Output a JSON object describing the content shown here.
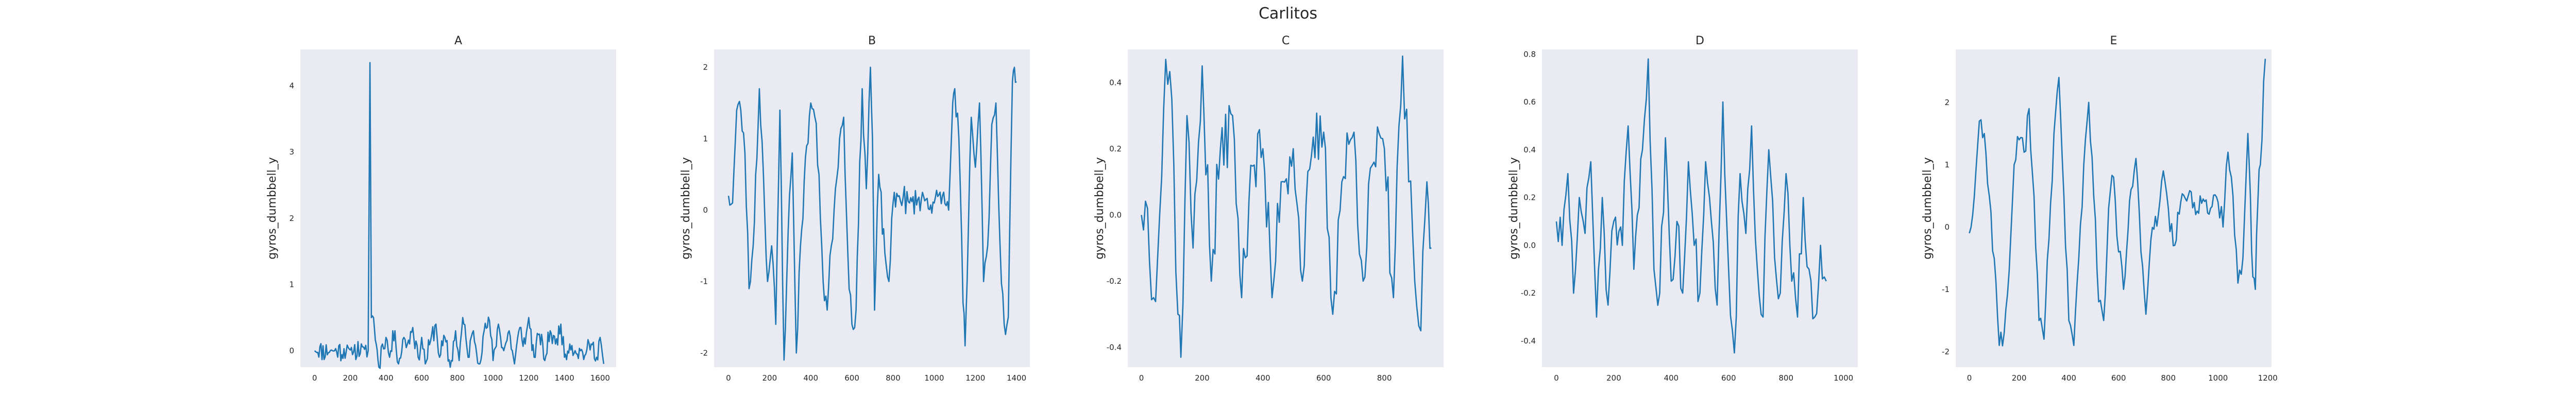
{
  "figure": {
    "title": "Carlitos"
  },
  "chart_data": [
    {
      "type": "line",
      "title": "A",
      "xlabel": "",
      "ylabel": "gyros_dumbbell_y",
      "xlim": [
        -80,
        1690
      ],
      "ylim": [
        -0.25,
        4.55
      ],
      "xticks": [
        0,
        200,
        400,
        600,
        800,
        1000,
        1200,
        1400,
        1600
      ],
      "yticks": [
        0,
        1,
        2,
        3,
        4
      ],
      "grid": false,
      "color": "#1f77b4",
      "keypoints": [
        [
          0,
          0
        ],
        [
          100,
          0
        ],
        [
          200,
          0.01
        ],
        [
          280,
          0.02
        ],
        [
          300,
          0
        ],
        [
          310,
          4.35
        ],
        [
          318,
          0.5
        ],
        [
          330,
          0.5
        ],
        [
          345,
          0.1
        ],
        [
          360,
          -0.25
        ],
        [
          380,
          0.1
        ],
        [
          400,
          0.2
        ],
        [
          420,
          -0.1
        ],
        [
          450,
          0.3
        ],
        [
          470,
          -0.2
        ],
        [
          500,
          0.2
        ],
        [
          520,
          0.1
        ],
        [
          550,
          0.35
        ],
        [
          580,
          -0.1
        ],
        [
          600,
          0.2
        ],
        [
          620,
          -0.2
        ],
        [
          650,
          0.15
        ],
        [
          680,
          0.4
        ],
        [
          700,
          -0.1
        ],
        [
          730,
          0.2
        ],
        [
          760,
          -0.25
        ],
        [
          790,
          0.3
        ],
        [
          810,
          -0.15
        ],
        [
          830,
          0.5
        ],
        [
          860,
          -0.1
        ],
        [
          890,
          0.3
        ],
        [
          920,
          -0.2
        ],
        [
          950,
          0.3
        ],
        [
          980,
          0.45
        ],
        [
          1000,
          -0.15
        ],
        [
          1030,
          0.4
        ],
        [
          1060,
          0
        ],
        [
          1090,
          0.3
        ],
        [
          1120,
          -0.2
        ],
        [
          1150,
          0.35
        ],
        [
          1180,
          0.1
        ],
        [
          1200,
          0.5
        ],
        [
          1230,
          -0.1
        ],
        [
          1260,
          0.25
        ],
        [
          1290,
          -0.15
        ],
        [
          1320,
          0.3
        ],
        [
          1350,
          0.1
        ],
        [
          1380,
          0.4
        ],
        [
          1400,
          -0.1
        ],
        [
          1430,
          0.1
        ],
        [
          1460,
          0
        ],
        [
          1490,
          0
        ],
        [
          1520,
          -0.05
        ],
        [
          1550,
          0.1
        ],
        [
          1580,
          -0.1
        ],
        [
          1600,
          0.2
        ],
        [
          1620,
          -0.2
        ]
      ],
      "amp": 0.17,
      "seed": 11
    },
    {
      "type": "line",
      "title": "B",
      "xlabel": "",
      "ylabel": "gyros_dumbbell_y",
      "xlim": [
        -70,
        1465
      ],
      "ylim": [
        -2.2,
        2.25
      ],
      "xticks": [
        0,
        200,
        400,
        600,
        800,
        1000,
        1200,
        1400
      ],
      "yticks": [
        -2,
        -1,
        0,
        1,
        2
      ],
      "grid": false,
      "color": "#1f77b4",
      "keypoints": [
        [
          0,
          0.2
        ],
        [
          20,
          0.1
        ],
        [
          40,
          1.4
        ],
        [
          60,
          1.4
        ],
        [
          80,
          0.8
        ],
        [
          100,
          -1.1
        ],
        [
          120,
          -0.5
        ],
        [
          150,
          1.7
        ],
        [
          170,
          0.5
        ],
        [
          190,
          -1.0
        ],
        [
          210,
          -0.5
        ],
        [
          230,
          -1.6
        ],
        [
          250,
          1.4
        ],
        [
          270,
          -2.1
        ],
        [
          290,
          -0.3
        ],
        [
          310,
          0.8
        ],
        [
          330,
          -2.0
        ],
        [
          350,
          -0.5
        ],
        [
          380,
          0.9
        ],
        [
          400,
          1.5
        ],
        [
          420,
          1.3
        ],
        [
          440,
          0.5
        ],
        [
          460,
          -1.0
        ],
        [
          480,
          -1.4
        ],
        [
          500,
          -0.5
        ],
        [
          520,
          0.3
        ],
        [
          540,
          1.0
        ],
        [
          560,
          1.3
        ],
        [
          580,
          -0.6
        ],
        [
          600,
          -1.6
        ],
        [
          620,
          -1.4
        ],
        [
          650,
          1.7
        ],
        [
          670,
          0.3
        ],
        [
          690,
          2.0
        ],
        [
          700,
          1.0
        ],
        [
          710,
          -1.4
        ],
        [
          730,
          0.5
        ],
        [
          760,
          -0.6
        ],
        [
          780,
          -1.0
        ],
        [
          800,
          0.1
        ],
        [
          830,
          0.2
        ],
        [
          880,
          0.1
        ],
        [
          920,
          0.15
        ],
        [
          960,
          0.15
        ],
        [
          1000,
          0.1
        ],
        [
          1040,
          0.2
        ],
        [
          1070,
          0
        ],
        [
          1090,
          1.5
        ],
        [
          1100,
          1.7
        ],
        [
          1120,
          1.0
        ],
        [
          1140,
          -1.3
        ],
        [
          1150,
          -1.9
        ],
        [
          1160,
          -1.0
        ],
        [
          1180,
          1.3
        ],
        [
          1200,
          0.6
        ],
        [
          1220,
          1.5
        ],
        [
          1240,
          -1.0
        ],
        [
          1260,
          -0.5
        ],
        [
          1280,
          1.2
        ],
        [
          1300,
          1.5
        ],
        [
          1320,
          -0.5
        ],
        [
          1340,
          -1.6
        ],
        [
          1360,
          -1.5
        ],
        [
          1380,
          1.8
        ],
        [
          1390,
          2.0
        ],
        [
          1400,
          1.8
        ]
      ],
      "amp": 0.22,
      "seed": 23
    },
    {
      "type": "line",
      "title": "C",
      "xlabel": "",
      "ylabel": "gyros_dumbbell_y",
      "xlim": [
        -45,
        995
      ],
      "ylim": [
        -0.46,
        0.5
      ],
      "xticks": [
        0,
        200,
        400,
        600,
        800
      ],
      "yticks": [
        -0.4,
        -0.2,
        0.0,
        0.2,
        0.4
      ],
      "grid": false,
      "color": "#1f77b4",
      "keypoints": [
        [
          0,
          0
        ],
        [
          20,
          0.02
        ],
        [
          40,
          -0.25
        ],
        [
          60,
          0
        ],
        [
          80,
          0.47
        ],
        [
          100,
          0.35
        ],
        [
          120,
          -0.3
        ],
        [
          130,
          -0.43
        ],
        [
          150,
          0.3
        ],
        [
          170,
          -0.1
        ],
        [
          200,
          0.45
        ],
        [
          230,
          -0.2
        ],
        [
          260,
          0.2
        ],
        [
          300,
          0.3
        ],
        [
          330,
          -0.25
        ],
        [
          360,
          0.15
        ],
        [
          400,
          0.2
        ],
        [
          430,
          -0.25
        ],
        [
          460,
          0.1
        ],
        [
          500,
          0.2
        ],
        [
          530,
          -0.2
        ],
        [
          560,
          0.18
        ],
        [
          600,
          0.25
        ],
        [
          630,
          -0.3
        ],
        [
          660,
          0.1
        ],
        [
          700,
          0.25
        ],
        [
          730,
          -0.2
        ],
        [
          760,
          0.15
        ],
        [
          800,
          0.2
        ],
        [
          830,
          -0.25
        ],
        [
          860,
          0.48
        ],
        [
          880,
          0.1
        ],
        [
          900,
          -0.2
        ],
        [
          920,
          -0.35
        ],
        [
          940,
          0.1
        ],
        [
          955,
          -0.1
        ]
      ],
      "amp": 0.12,
      "seed": 37
    },
    {
      "type": "line",
      "title": "D",
      "xlabel": "",
      "ylabel": "gyros_dumbbell_y",
      "xlim": [
        -50,
        1050
      ],
      "ylim": [
        -0.51,
        0.82
      ],
      "xticks": [
        0,
        200,
        400,
        600,
        800,
        1000
      ],
      "yticks": [
        -0.4,
        -0.2,
        0.0,
        0.2,
        0.4,
        0.6,
        0.8
      ],
      "grid": false,
      "color": "#1f77b4",
      "keypoints": [
        [
          0,
          0.1
        ],
        [
          20,
          0
        ],
        [
          40,
          0.3
        ],
        [
          60,
          -0.2
        ],
        [
          80,
          0.2
        ],
        [
          100,
          0.05
        ],
        [
          120,
          0.35
        ],
        [
          140,
          -0.3
        ],
        [
          160,
          0.2
        ],
        [
          180,
          -0.25
        ],
        [
          200,
          0.1
        ],
        [
          230,
          0.0
        ],
        [
          250,
          0.5
        ],
        [
          270,
          -0.1
        ],
        [
          300,
          0.4
        ],
        [
          320,
          0.78
        ],
        [
          340,
          -0.1
        ],
        [
          360,
          -0.2
        ],
        [
          380,
          0.45
        ],
        [
          400,
          -0.15
        ],
        [
          420,
          0.1
        ],
        [
          440,
          -0.2
        ],
        [
          460,
          0.35
        ],
        [
          480,
          0.0
        ],
        [
          500,
          -0.2
        ],
        [
          520,
          0.35
        ],
        [
          540,
          0.1
        ],
        [
          560,
          -0.25
        ],
        [
          580,
          0.6
        ],
        [
          600,
          -0.1
        ],
        [
          620,
          -0.45
        ],
        [
          640,
          0.3
        ],
        [
          660,
          0.05
        ],
        [
          680,
          0.5
        ],
        [
          700,
          -0.1
        ],
        [
          720,
          -0.3
        ],
        [
          740,
          0.4
        ],
        [
          760,
          -0.05
        ],
        [
          780,
          -0.2
        ],
        [
          800,
          0.3
        ],
        [
          820,
          -0.15
        ],
        [
          840,
          -0.3
        ],
        [
          860,
          0.2
        ],
        [
          880,
          -0.1
        ],
        [
          900,
          -0.3
        ],
        [
          920,
          0.0
        ],
        [
          940,
          -0.15
        ]
      ],
      "amp": 0.12,
      "seed": 51
    },
    {
      "type": "line",
      "title": "E",
      "xlabel": "",
      "ylabel": "gyros_dumbbell_y",
      "xlim": [
        -55,
        1215
      ],
      "ylim": [
        -2.25,
        2.85
      ],
      "xticks": [
        0,
        200,
        400,
        600,
        800,
        1000,
        1200
      ],
      "yticks": [
        -2,
        -1,
        0,
        1,
        2
      ],
      "grid": false,
      "color": "#1f77b4",
      "keypoints": [
        [
          0,
          -0.1
        ],
        [
          20,
          0.5
        ],
        [
          40,
          1.7
        ],
        [
          60,
          1.5
        ],
        [
          80,
          0.5
        ],
        [
          100,
          -0.5
        ],
        [
          120,
          -1.9
        ],
        [
          140,
          -1.7
        ],
        [
          160,
          -0.7
        ],
        [
          180,
          1.0
        ],
        [
          200,
          1.4
        ],
        [
          220,
          1.2
        ],
        [
          240,
          1.9
        ],
        [
          260,
          0.5
        ],
        [
          280,
          -1.5
        ],
        [
          300,
          -1.8
        ],
        [
          320,
          -0.2
        ],
        [
          340,
          1.5
        ],
        [
          360,
          2.4
        ],
        [
          380,
          0.5
        ],
        [
          400,
          -1.5
        ],
        [
          420,
          -1.9
        ],
        [
          440,
          -0.5
        ],
        [
          460,
          1.0
        ],
        [
          480,
          2.0
        ],
        [
          500,
          0.5
        ],
        [
          520,
          -1.2
        ],
        [
          540,
          -1.5
        ],
        [
          560,
          0.3
        ],
        [
          580,
          0.8
        ],
        [
          600,
          -0.4
        ],
        [
          620,
          -1.0
        ],
        [
          650,
          0.6
        ],
        [
          670,
          1.1
        ],
        [
          690,
          -0.4
        ],
        [
          710,
          -1.4
        ],
        [
          730,
          -0.2
        ],
        [
          760,
          0.2
        ],
        [
          780,
          0.9
        ],
        [
          800,
          0.3
        ],
        [
          820,
          -0.3
        ],
        [
          850,
          0.4
        ],
        [
          880,
          0.5
        ],
        [
          910,
          0.2
        ],
        [
          940,
          0.45
        ],
        [
          970,
          0.3
        ],
        [
          1000,
          0.4
        ],
        [
          1020,
          0.0
        ],
        [
          1040,
          1.2
        ],
        [
          1060,
          0.5
        ],
        [
          1080,
          -0.9
        ],
        [
          1100,
          -0.5
        ],
        [
          1120,
          1.5
        ],
        [
          1130,
          0.5
        ],
        [
          1140,
          -0.8
        ],
        [
          1150,
          -1.0
        ],
        [
          1160,
          0.4
        ],
        [
          1170,
          1.0
        ],
        [
          1190,
          2.7
        ]
      ],
      "amp": 0.25,
      "seed": 77
    }
  ]
}
